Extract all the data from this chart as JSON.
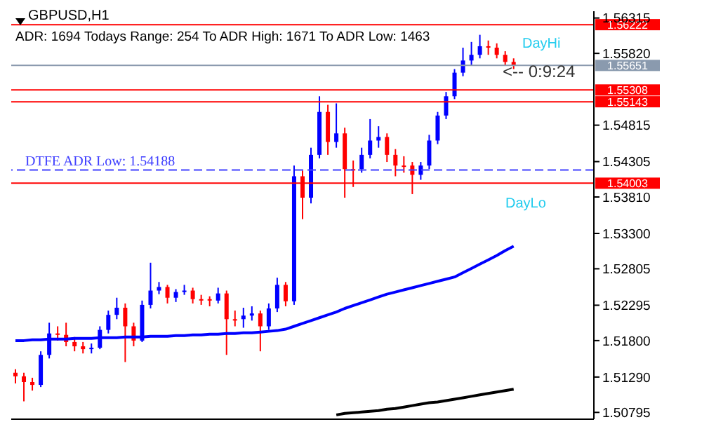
{
  "chart_data": {
    "type": "candlestick",
    "title": "GBPUSD,H1",
    "subtitle": "ADR: 1694  Todays Range: 254  To ADR High: 1671  To ADR Low: 1463",
    "annotations": [
      "DayHi",
      "DayLo",
      "<-- 0:9:24"
    ],
    "categories": [
      null,
      null,
      null,
      null,
      null,
      null,
      null,
      null,
      null,
      null,
      null,
      null,
      null,
      null,
      null,
      null,
      null,
      null,
      null,
      null,
      null,
      null,
      null,
      null,
      null,
      null,
      null,
      null,
      null,
      null,
      null,
      null,
      null,
      null,
      null,
      null,
      null,
      null,
      null,
      null,
      null,
      null,
      null,
      null,
      null,
      null,
      null,
      null,
      null,
      null,
      null,
      null,
      null,
      null,
      null,
      null,
      null,
      null,
      null,
      null,
      null,
      null,
      null,
      null,
      null,
      null,
      null,
      null,
      null
    ],
    "ohlc": [
      [
        1.5135,
        1.514,
        1.512,
        1.513
      ],
      [
        1.513,
        1.5135,
        1.5095,
        1.5122
      ],
      [
        1.5122,
        1.5128,
        1.511,
        1.5118
      ],
      [
        1.5118,
        1.5165,
        1.5115,
        1.516
      ],
      [
        1.516,
        1.5205,
        1.5155,
        1.519
      ],
      [
        1.519,
        1.52,
        1.518,
        1.5188
      ],
      [
        1.5188,
        1.5205,
        1.5172,
        1.5178
      ],
      [
        1.5178,
        1.5185,
        1.5165,
        1.5172
      ],
      [
        1.5172,
        1.5178,
        1.5162,
        1.5168
      ],
      [
        1.5168,
        1.5176,
        1.5162,
        1.517
      ],
      [
        1.517,
        1.52,
        1.5168,
        1.5195
      ],
      [
        1.5195,
        1.5222,
        1.519,
        1.5216
      ],
      [
        1.5216,
        1.524,
        1.521,
        1.5226
      ],
      [
        1.5226,
        1.5232,
        1.515,
        1.52
      ],
      [
        1.52,
        1.5205,
        1.5172,
        1.518
      ],
      [
        1.518,
        1.5236,
        1.5178,
        1.523
      ],
      [
        1.523,
        1.5289,
        1.5225,
        1.525
      ],
      [
        1.525,
        1.5262,
        1.5245,
        1.5255
      ],
      [
        1.5255,
        1.5258,
        1.5232,
        1.524
      ],
      [
        1.524,
        1.5252,
        1.5234,
        1.5248
      ],
      [
        1.5248,
        1.5258,
        1.5244,
        1.525
      ],
      [
        1.525,
        1.5254,
        1.5232,
        1.5238
      ],
      [
        1.5238,
        1.5244,
        1.523,
        1.5238
      ],
      [
        1.5238,
        1.5242,
        1.5228,
        1.5236
      ],
      [
        1.5236,
        1.5254,
        1.5232,
        1.5246
      ],
      [
        1.5246,
        1.525,
        1.516,
        1.521
      ],
      [
        1.521,
        1.5222,
        1.52,
        1.521
      ],
      [
        1.521,
        1.5226,
        1.5198,
        1.5215
      ],
      [
        1.5215,
        1.5228,
        1.5208,
        1.5218
      ],
      [
        1.5218,
        1.5222,
        1.5165,
        1.52
      ],
      [
        1.52,
        1.5232,
        1.5195,
        1.5225
      ],
      [
        1.5225,
        1.5268,
        1.522,
        1.5258
      ],
      [
        1.5258,
        1.5262,
        1.5228,
        1.5235
      ],
      [
        1.5235,
        1.5425,
        1.523,
        1.541
      ],
      [
        1.541,
        1.5418,
        1.535,
        1.538
      ],
      [
        1.538,
        1.545,
        1.5372,
        1.544
      ],
      [
        1.544,
        1.5522,
        1.5435,
        1.55
      ],
      [
        1.55,
        1.551,
        1.544,
        1.5458
      ],
      [
        1.5458,
        1.5512,
        1.545,
        1.547
      ],
      [
        1.547,
        1.5478,
        1.538,
        1.542
      ],
      [
        1.542,
        1.5432,
        1.5395,
        1.542
      ],
      [
        1.542,
        1.545,
        1.5415,
        1.544
      ],
      [
        1.544,
        1.549,
        1.5435,
        1.546
      ],
      [
        1.546,
        1.548,
        1.545,
        1.5465
      ],
      [
        1.5465,
        1.547,
        1.543,
        1.544
      ],
      [
        1.544,
        1.5448,
        1.541,
        1.5425
      ],
      [
        1.5425,
        1.5438,
        1.5415,
        1.5425
      ],
      [
        1.5425,
        1.543,
        1.5385,
        1.5412
      ],
      [
        1.5412,
        1.543,
        1.5405,
        1.5425
      ],
      [
        1.5425,
        1.5468,
        1.542,
        1.546
      ],
      [
        1.546,
        1.55,
        1.5455,
        1.5495
      ],
      [
        1.5495,
        1.5528,
        1.549,
        1.5522
      ],
      [
        1.5522,
        1.556,
        1.5518,
        1.5555
      ],
      [
        1.5555,
        1.559,
        1.555,
        1.5572
      ],
      [
        1.5572,
        1.5598,
        1.5565,
        1.558
      ],
      [
        1.558,
        1.5608,
        1.5575,
        1.5592
      ],
      [
        1.5592,
        1.56,
        1.558,
        1.559
      ],
      [
        1.559,
        1.5596,
        1.5575,
        1.558
      ],
      [
        1.558,
        1.5585,
        1.5565,
        1.557
      ],
      [
        1.557,
        1.5575,
        1.556,
        1.5565
      ],
      null,
      null,
      null,
      null,
      null,
      null,
      null,
      null,
      null
    ],
    "colors": [
      "#ff0000",
      "#ff0000",
      "#ff0000",
      "#0000ff",
      "#0000ff",
      "#ff0000",
      "#ff0000",
      "#ff0000",
      "#ff0000",
      "#0000ff",
      "#0000ff",
      "#0000ff",
      "#0000ff",
      "#ff0000",
      "#ff0000",
      "#0000ff",
      "#0000ff",
      "#0000ff",
      "#ff0000",
      "#0000ff",
      "#0000ff",
      "#ff0000",
      "#ff0000",
      "#ff0000",
      "#0000ff",
      "#ff0000",
      "#ff0000",
      "#0000ff",
      "#0000ff",
      "#ff0000",
      "#0000ff",
      "#0000ff",
      "#ff0000",
      "#0000ff",
      "#ff0000",
      "#0000ff",
      "#0000ff",
      "#ff0000",
      "#0000ff",
      "#ff0000",
      "#ff0000",
      "#0000ff",
      "#0000ff",
      "#0000ff",
      "#ff0000",
      "#ff0000",
      "#ff0000",
      "#ff0000",
      "#0000ff",
      "#0000ff",
      "#0000ff",
      "#0000ff",
      "#0000ff",
      "#0000ff",
      "#0000ff",
      "#0000ff",
      "#ff0000",
      "#ff0000",
      "#ff0000",
      "#ff0000",
      null,
      null,
      null,
      null,
      null,
      null,
      null,
      null,
      null
    ],
    "series": [
      {
        "type": "line",
        "color": "#0000ff",
        "values": [
          1.518,
          1.518,
          1.5181,
          1.5181,
          1.5182,
          1.5182,
          1.5182,
          1.5183,
          1.5183,
          1.5183,
          1.5184,
          1.5184,
          1.5184,
          1.5185,
          1.5185,
          1.5185,
          1.5186,
          1.5186,
          1.5186,
          1.5187,
          1.5187,
          1.5188,
          1.5188,
          1.5189,
          1.5189,
          1.519,
          1.519,
          1.5191,
          1.5191,
          1.5192,
          1.5193,
          1.5194,
          1.5196,
          1.52,
          1.5204,
          1.5208,
          1.5212,
          1.5216,
          1.522,
          1.5225,
          1.5229,
          1.5233,
          1.5237,
          1.5241,
          1.5245,
          1.5248,
          1.5251,
          1.5254,
          1.5257,
          1.526,
          1.5263,
          1.5266,
          1.5269,
          1.5275,
          1.5281,
          1.5287,
          1.5293,
          1.5299,
          1.5306,
          1.5312,
          null,
          null,
          null,
          null,
          null,
          null,
          null,
          null,
          null
        ]
      },
      {
        "type": "line",
        "color": "#000000",
        "values": [
          null,
          null,
          null,
          null,
          null,
          null,
          null,
          null,
          null,
          null,
          null,
          null,
          null,
          null,
          null,
          null,
          null,
          null,
          null,
          null,
          null,
          null,
          null,
          null,
          null,
          null,
          null,
          null,
          null,
          null,
          null,
          null,
          null,
          null,
          null,
          null,
          null,
          null,
          1.5076,
          1.5078,
          1.5079,
          1.508,
          1.5081,
          1.5082,
          1.5084,
          1.5085,
          1.5087,
          1.5089,
          1.5091,
          1.5093,
          1.5094,
          1.5096,
          1.5098,
          1.51,
          1.5102,
          1.5104,
          1.5106,
          1.5108,
          1.511,
          1.5112,
          null,
          null,
          null,
          null,
          null,
          null,
          null,
          null,
          null
        ]
      }
    ],
    "ref_lines": [
      {
        "axis": "y",
        "value": 1.56222,
        "label": "1.56222",
        "color": "#ff0000"
      },
      {
        "axis": "y",
        "value": 1.55651,
        "label": "1.55651",
        "color": "#8a9aae"
      },
      {
        "axis": "y",
        "value": 1.55308,
        "label": "1.55308",
        "color": "#ff0000"
      },
      {
        "axis": "y",
        "value": 1.55143,
        "label": "1.55143",
        "color": "#ff0000"
      },
      {
        "axis": "y",
        "value": 1.54003,
        "label": "1.54003",
        "color": "#ff0000"
      },
      {
        "axis": "y",
        "value": 1.54188,
        "label": "DTFE ADR Low: 1.54188",
        "color": "#4040ff",
        "line_style": "dashed"
      }
    ],
    "ylim": [
      1.507,
      1.5641
    ],
    "yticks": [
      1.50795,
      {
        "value": 1.5129,
        "label": "1.51290"
      },
      {
        "value": 1.518,
        "label": "1.51800"
      },
      1.52295,
      1.52805,
      {
        "value": 1.533,
        "label": "1.53300"
      },
      {
        "value": 1.5381,
        "label": "1.53810"
      },
      1.54305,
      1.54815,
      {
        "value": 1.5582,
        "label": "1.55820"
      },
      1.56315
    ],
    "tick_labels": "y"
  }
}
